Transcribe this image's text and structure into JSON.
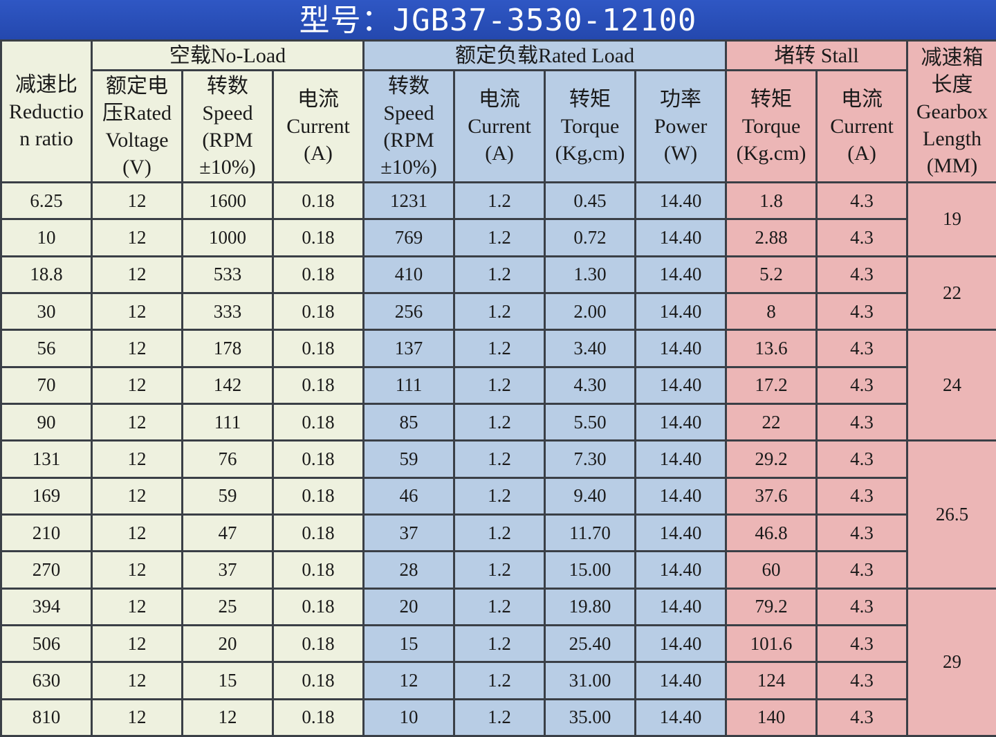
{
  "title": "型号：JGB37-3530-12100",
  "groups": {
    "no_load": "空载No-Load",
    "rated_load": "额定负载Rated Load",
    "stall": "堵转 Stall"
  },
  "headers": {
    "reduction": [
      "减速比",
      "Reductio",
      "n ratio"
    ],
    "voltage": [
      "额定电",
      "压Rated",
      "Voltage",
      "(V)"
    ],
    "nl_speed": [
      "转数",
      "Speed",
      "(RPM",
      "±10%)"
    ],
    "nl_current": [
      "电流",
      "Current",
      "(A)"
    ],
    "rl_speed": [
      "转数",
      "Speed",
      "(RPM",
      "±10%)"
    ],
    "rl_current": [
      "电流",
      "Current",
      "(A)"
    ],
    "rl_torque": [
      "转矩",
      "Torque",
      "(Kg,cm)"
    ],
    "rl_power": [
      "功率",
      "Power",
      "(W)"
    ],
    "st_torque": [
      "转矩",
      "Torque",
      "(Kg.cm)"
    ],
    "st_current": [
      "电流",
      "Current",
      "(A)"
    ],
    "gearbox": [
      "减速箱",
      "长度",
      "Gearbox",
      "Length",
      "(MM)"
    ]
  },
  "rows": [
    [
      "6.25",
      "12",
      "1600",
      "0.18",
      "1231",
      "1.2",
      "0.45",
      "14.40",
      "1.8",
      "4.3"
    ],
    [
      "10",
      "12",
      "1000",
      "0.18",
      "769",
      "1.2",
      "0.72",
      "14.40",
      "2.88",
      "4.3"
    ],
    [
      "18.8",
      "12",
      "533",
      "0.18",
      "410",
      "1.2",
      "1.30",
      "14.40",
      "5.2",
      "4.3"
    ],
    [
      "30",
      "12",
      "333",
      "0.18",
      "256",
      "1.2",
      "2.00",
      "14.40",
      "8",
      "4.3"
    ],
    [
      "56",
      "12",
      "178",
      "0.18",
      "137",
      "1.2",
      "3.40",
      "14.40",
      "13.6",
      "4.3"
    ],
    [
      "70",
      "12",
      "142",
      "0.18",
      "111",
      "1.2",
      "4.30",
      "14.40",
      "17.2",
      "4.3"
    ],
    [
      "90",
      "12",
      "111",
      "0.18",
      "85",
      "1.2",
      "5.50",
      "14.40",
      "22",
      "4.3"
    ],
    [
      "131",
      "12",
      "76",
      "0.18",
      "59",
      "1.2",
      "7.30",
      "14.40",
      "29.2",
      "4.3"
    ],
    [
      "169",
      "12",
      "59",
      "0.18",
      "46",
      "1.2",
      "9.40",
      "14.40",
      "37.6",
      "4.3"
    ],
    [
      "210",
      "12",
      "47",
      "0.18",
      "37",
      "1.2",
      "11.70",
      "14.40",
      "46.8",
      "4.3"
    ],
    [
      "270",
      "12",
      "37",
      "0.18",
      "28",
      "1.2",
      "15.00",
      "14.40",
      "60",
      "4.3"
    ],
    [
      "394",
      "12",
      "25",
      "0.18",
      "20",
      "1.2",
      "19.80",
      "14.40",
      "79.2",
      "4.3"
    ],
    [
      "506",
      "12",
      "20",
      "0.18",
      "15",
      "1.2",
      "25.40",
      "14.40",
      "101.6",
      "4.3"
    ],
    [
      "630",
      "12",
      "15",
      "0.18",
      "12",
      "1.2",
      "31.00",
      "14.40",
      "124",
      "4.3"
    ],
    [
      "810",
      "12",
      "12",
      "0.18",
      "10",
      "1.2",
      "35.00",
      "14.40",
      "140",
      "4.3"
    ]
  ],
  "gearbox_lengths": [
    {
      "value": "19",
      "rowspan": 2
    },
    {
      "value": "22",
      "rowspan": 2
    },
    {
      "value": "24",
      "rowspan": 3
    },
    {
      "value": "26.5",
      "rowspan": 4
    },
    {
      "value": "29",
      "rowspan": 4
    }
  ],
  "colors": {
    "title_bg": "#2a4fb5",
    "no_load_bg": "#eef1df",
    "rated_load_bg": "#b8cde5",
    "stall_bg": "#ecb6b6",
    "grid_line": "#3a3f46"
  }
}
